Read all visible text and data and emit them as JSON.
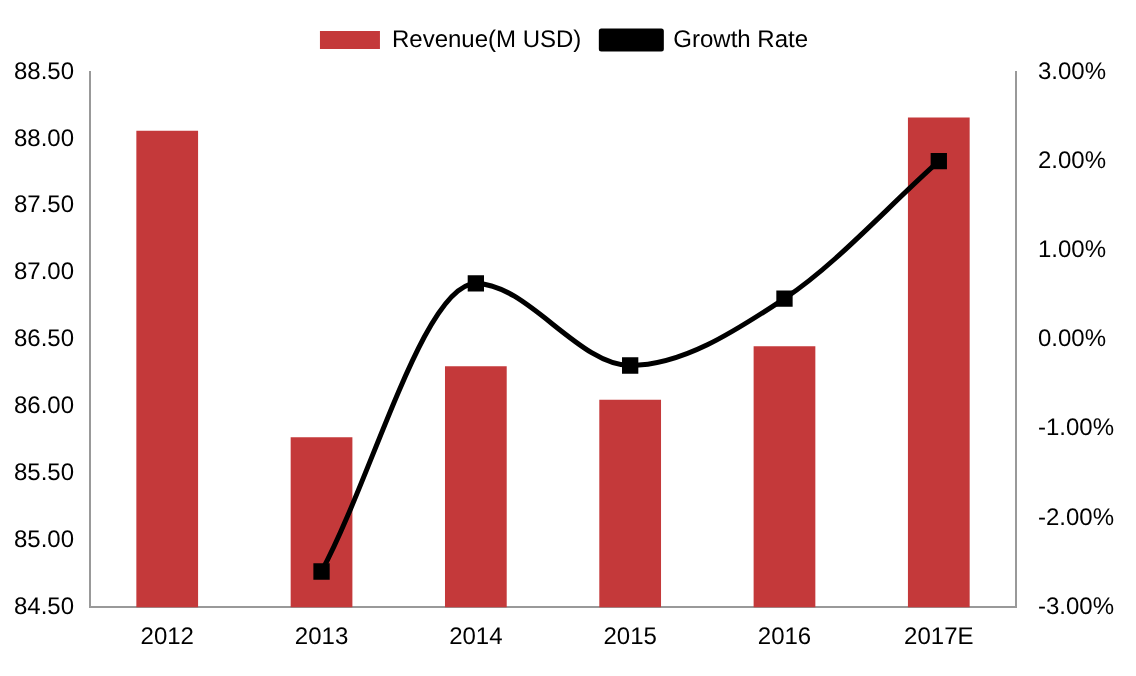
{
  "chart_data": {
    "type": "bar",
    "categories": [
      "2012",
      "2013",
      "2014",
      "2015",
      "2016",
      "2017E"
    ],
    "series": [
      {
        "name": "Revenue(M USD)",
        "color": "#c4393a",
        "values": [
          88.06,
          85.77,
          86.3,
          86.05,
          86.45,
          88.16
        ]
      },
      {
        "name": "Growth Rate",
        "type": "line",
        "axis": "y2",
        "color": "#000000",
        "marker": "square",
        "values": [
          null,
          -2.6,
          0.63,
          -0.29,
          0.46,
          2.0
        ]
      }
    ],
    "ylim": [
      84.5,
      88.5
    ],
    "yticks": [
      {
        "value": 84.5,
        "label": "84.50"
      },
      {
        "value": 85,
        "label": "85.00"
      },
      {
        "value": 85.5,
        "label": "85.50"
      },
      {
        "value": 86,
        "label": "86.00"
      },
      {
        "value": 86.5,
        "label": "86.50"
      },
      {
        "value": 87,
        "label": "87.00"
      },
      {
        "value": 87.5,
        "label": "87.50"
      },
      {
        "value": 88,
        "label": "88.00"
      },
      {
        "value": 88.5,
        "label": "88.50"
      }
    ],
    "y2lim": [
      -3,
      3
    ],
    "y2ticks": [
      {
        "value": -3,
        "label": "-3.00%"
      },
      {
        "value": -2,
        "label": "-2.00%"
      },
      {
        "value": -1,
        "label": "-1.00%"
      },
      {
        "value": 0,
        "label": "0.00%"
      },
      {
        "value": 1,
        "label": "1.00%"
      },
      {
        "value": 2,
        "label": "2.00%"
      },
      {
        "value": 3,
        "label": "3.00%"
      }
    ],
    "grid": false,
    "legend": "top"
  }
}
